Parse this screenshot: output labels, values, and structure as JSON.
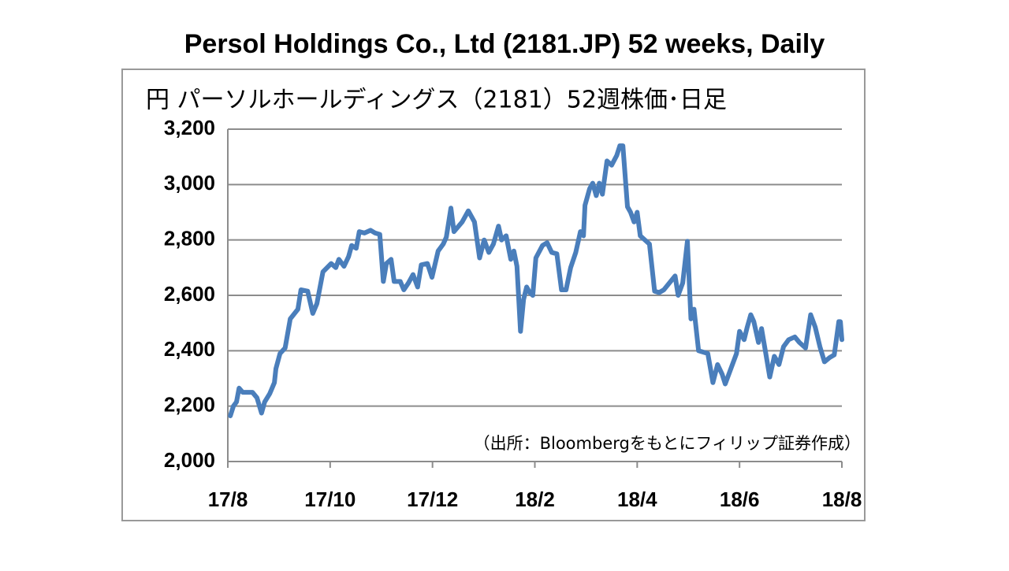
{
  "chart_data": {
    "type": "line",
    "title": "Persol Holdings Co., Ltd (2181.JP) 52 weeks, Daily",
    "subtitle": "円 パーソルホールディングス（2181）52週株価･日足",
    "annotation": "（出所：Bloombergをもとにフィリップ証券作成）",
    "color": "#4a7ebb",
    "grid": true,
    "xlim": [
      0,
      12
    ],
    "xticks": [
      {
        "value": 0,
        "label": "17/8"
      },
      {
        "value": 2,
        "label": "17/10"
      },
      {
        "value": 4,
        "label": "17/12"
      },
      {
        "value": 6,
        "label": "18/2"
      },
      {
        "value": 8,
        "label": "18/4"
      },
      {
        "value": 10,
        "label": "18/6"
      },
      {
        "value": 12,
        "label": "18/8"
      }
    ],
    "ylim": [
      2000,
      3200
    ],
    "yticks": [
      {
        "value": 2000,
        "label": "2,000"
      },
      {
        "value": 2200,
        "label": "2,200"
      },
      {
        "value": 2400,
        "label": "2,400"
      },
      {
        "value": 2600,
        "label": "2,600"
      },
      {
        "value": 2800,
        "label": "2,800"
      },
      {
        "value": 3000,
        "label": "3,000"
      },
      {
        "value": 3200,
        "label": "3,200"
      }
    ],
    "x": [
      0.05,
      0.11,
      0.17,
      0.22,
      0.29,
      0.4,
      0.48,
      0.57,
      0.66,
      0.72,
      0.82,
      0.91,
      0.94,
      1.02,
      1.12,
      1.22,
      1.37,
      1.43,
      1.56,
      1.66,
      1.74,
      1.86,
      2.02,
      2.11,
      2.17,
      2.27,
      2.36,
      2.42,
      2.51,
      2.57,
      2.67,
      2.79,
      2.88,
      2.97,
      3.04,
      3.1,
      3.19,
      3.25,
      3.37,
      3.44,
      3.53,
      3.62,
      3.71,
      3.78,
      3.9,
      3.99,
      4.11,
      4.21,
      4.27,
      4.36,
      4.42,
      4.58,
      4.7,
      4.82,
      4.92,
      5.01,
      5.1,
      5.19,
      5.29,
      5.35,
      5.44,
      5.53,
      5.59,
      5.65,
      5.72,
      5.78,
      5.84,
      5.9,
      5.96,
      6.02,
      6.15,
      6.24,
      6.33,
      6.43,
      6.52,
      6.61,
      6.7,
      6.8,
      6.89,
      6.95,
      6.98,
      7.07,
      7.13,
      7.2,
      7.26,
      7.32,
      7.41,
      7.5,
      7.6,
      7.66,
      7.72,
      7.81,
      7.87,
      7.94,
      8.0,
      8.06,
      8.15,
      8.24,
      8.34,
      8.43,
      8.52,
      8.74,
      8.8,
      8.89,
      8.98,
      9.05,
      9.11,
      9.2,
      9.38,
      9.48,
      9.57,
      9.66,
      9.72,
      9.82,
      9.94,
      10.0,
      10.09,
      10.15,
      10.22,
      10.28,
      10.37,
      10.43,
      10.49,
      10.59,
      10.68,
      10.77,
      10.86,
      10.96,
      11.08,
      11.17,
      11.29,
      11.39,
      11.48,
      11.57,
      11.66,
      11.76,
      11.85,
      11.94,
      11.97,
      12.0
    ],
    "values": [
      2165,
      2200,
      2215,
      2265,
      2250,
      2250,
      2250,
      2230,
      2175,
      2215,
      2245,
      2285,
      2335,
      2390,
      2410,
      2515,
      2550,
      2620,
      2615,
      2535,
      2570,
      2685,
      2715,
      2700,
      2730,
      2705,
      2740,
      2780,
      2770,
      2830,
      2825,
      2835,
      2825,
      2820,
      2650,
      2715,
      2730,
      2650,
      2650,
      2620,
      2645,
      2675,
      2630,
      2710,
      2715,
      2665,
      2760,
      2785,
      2810,
      2915,
      2830,
      2865,
      2905,
      2865,
      2735,
      2800,
      2755,
      2785,
      2850,
      2800,
      2815,
      2730,
      2760,
      2705,
      2470,
      2585,
      2630,
      2610,
      2600,
      2735,
      2780,
      2790,
      2755,
      2750,
      2620,
      2620,
      2700,
      2755,
      2830,
      2815,
      2925,
      2985,
      3005,
      2960,
      3005,
      2965,
      3085,
      3070,
      3105,
      3140,
      3140,
      2920,
      2900,
      2865,
      2900,
      2815,
      2800,
      2785,
      2615,
      2610,
      2620,
      2670,
      2600,
      2645,
      2795,
      2515,
      2550,
      2400,
      2390,
      2285,
      2350,
      2315,
      2280,
      2330,
      2390,
      2470,
      2440,
      2485,
      2530,
      2505,
      2430,
      2480,
      2415,
      2305,
      2380,
      2350,
      2415,
      2440,
      2450,
      2430,
      2410,
      2530,
      2485,
      2415,
      2360,
      2375,
      2385,
      2505,
      2505,
      2440
    ]
  }
}
